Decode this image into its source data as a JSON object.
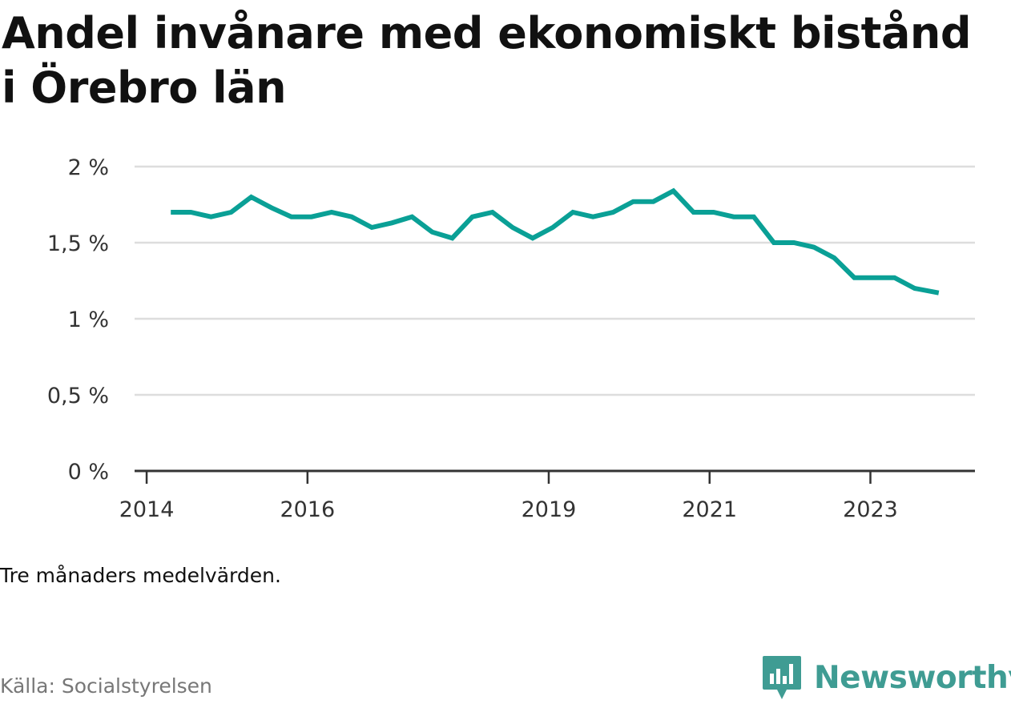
{
  "title": "Andel invånare med ekonomiskt bistånd i Örebro län",
  "note": "Tre månaders medelvärden.",
  "source": "Källa: Socialstyrelsen",
  "brand": {
    "name": "Newsworthy",
    "color": "#3f9c93",
    "icon": "newsworthy-logo-icon"
  },
  "chart_data": {
    "type": "line",
    "color": "#0aa096",
    "y_ticks": [
      "0 %",
      "0,5 %",
      "1 %",
      "1,5 %",
      "2 %"
    ],
    "y_tick_values": [
      0,
      0.5,
      1,
      1.5,
      2
    ],
    "ylim": [
      0,
      2
    ],
    "x_ticks": [
      "2014",
      "2016",
      "2019",
      "2021",
      "2023"
    ],
    "x_tick_values": [
      2014.0,
      2016.0,
      2019.0,
      2021.0,
      2023.0
    ],
    "xlim": [
      2013.85,
      2024.3
    ],
    "grid": true,
    "series": [
      {
        "x": [
          2014.3,
          2014.55,
          2014.8,
          2015.05,
          2015.3,
          2015.55,
          2015.8,
          2016.05,
          2016.3,
          2016.55,
          2016.8,
          2017.05,
          2017.3,
          2017.55,
          2017.8,
          2018.05,
          2018.3,
          2018.55,
          2018.8,
          2019.05,
          2019.3,
          2019.55,
          2019.8,
          2020.05,
          2020.3,
          2020.55,
          2020.8,
          2021.05,
          2021.3,
          2021.55,
          2021.8,
          2022.05,
          2022.3,
          2022.55,
          2022.8,
          2023.05,
          2023.3,
          2023.55,
          2023.85
        ],
        "values": [
          1.7,
          1.7,
          1.67,
          1.7,
          1.8,
          1.73,
          1.67,
          1.67,
          1.7,
          1.67,
          1.6,
          1.63,
          1.67,
          1.57,
          1.53,
          1.67,
          1.7,
          1.6,
          1.53,
          1.6,
          1.7,
          1.67,
          1.7,
          1.77,
          1.77,
          1.84,
          1.7,
          1.7,
          1.67,
          1.67,
          1.5,
          1.5,
          1.47,
          1.4,
          1.27,
          1.27,
          1.27,
          1.2,
          1.17
        ]
      }
    ]
  }
}
